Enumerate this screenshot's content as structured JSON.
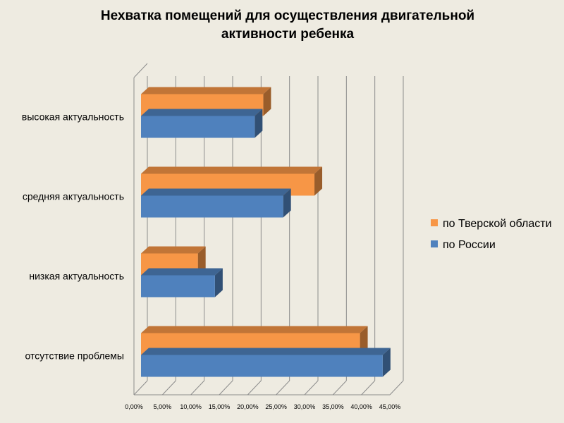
{
  "chart_data": {
    "type": "bar",
    "orientation": "horizontal",
    "title_lines": [
      "Нехватка помещений для осуществления двигательной",
      "активности ребенка"
    ],
    "categories": [
      "высокая актуальность",
      "средняя актуальность",
      "низкая актуальность",
      "отсутствие проблемы"
    ],
    "series": [
      {
        "name": "по Тверской области",
        "values": [
          21.5,
          30.5,
          10.0,
          38.5
        ],
        "color": "#F79646"
      },
      {
        "name": "по России",
        "values": [
          20.0,
          25.0,
          13.0,
          42.5
        ],
        "color": "#4F81BD"
      }
    ],
    "xlim": [
      0,
      45
    ],
    "x_ticks": [
      "0,00%",
      "5,00%",
      "10,00%",
      "15,00%",
      "20,00%",
      "25,00%",
      "30,00%",
      "35,00%",
      "40,00%",
      "45,00%"
    ],
    "grid": true,
    "legend_position": "right"
  }
}
